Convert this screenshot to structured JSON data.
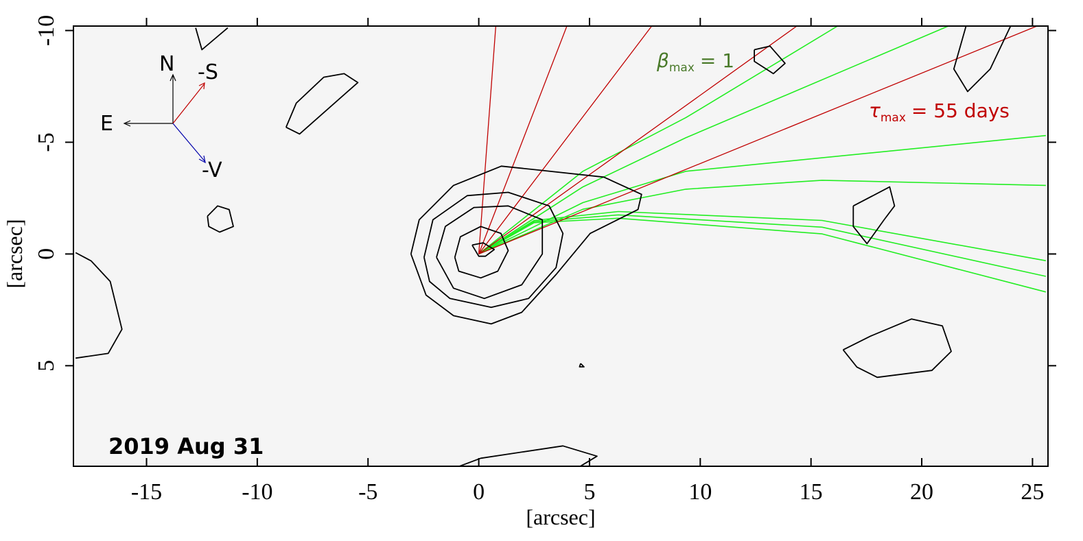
{
  "chart_data": {
    "type": "contour",
    "date_label": "2019 Aug 31",
    "xlabel": "[arcsec]",
    "ylabel": "[arcsec]",
    "xlim": [
      -18.3,
      25.7
    ],
    "ylim": [
      9.5,
      -10.2
    ],
    "xticks": [
      -15,
      -10,
      -5,
      0,
      5,
      10,
      15,
      20,
      25
    ],
    "yticks": [
      -10,
      -5,
      0,
      5
    ],
    "compass": {
      "north": "N",
      "east": "E",
      "sun": "-S",
      "velocity": "-V"
    },
    "syndyne_label": {
      "symbol": "β",
      "sub": "max",
      "text": "= 1",
      "color": "#4a7a2a"
    },
    "synchrone_label": {
      "symbol": "τ",
      "sub": "max",
      "text": "= 55 days",
      "color": "#c00000"
    },
    "contour_color": "#000000",
    "contours": [
      {
        "x": [
          -0.3,
          0.2,
          0.7,
          0.3,
          0.0,
          -0.3
        ],
        "y": [
          -0.4,
          -0.5,
          -0.2,
          0.1,
          0.1,
          -0.4
        ]
      },
      {
        "x": [
          -1.08,
          -0.83,
          0.09,
          1.0,
          1.33,
          0.86,
          0.09,
          -0.9,
          -1.08
        ],
        "y": [
          0.15,
          -0.77,
          -1.23,
          -0.92,
          -0.15,
          0.77,
          1.07,
          0.77,
          0.15
        ]
      },
      {
        "x": [
          -1.91,
          -1.51,
          -0.22,
          1.33,
          2.87,
          2.87,
          1.94,
          0.25,
          -1.14,
          -1.91
        ],
        "y": [
          0.15,
          -1.23,
          -2.08,
          -2.15,
          -1.53,
          0,
          1.38,
          1.99,
          1.53,
          0.15
        ]
      },
      {
        "x": [
          -2.47,
          -2.07,
          -0.52,
          1.33,
          3.18,
          3.8,
          3.49,
          2.25,
          0.56,
          -1.3,
          -2.22,
          -2.47
        ],
        "y": [
          0.15,
          -1.53,
          -2.61,
          -2.76,
          -2.15,
          -0.92,
          0.61,
          1.99,
          2.39,
          1.99,
          1.23,
          0.15
        ]
      },
      {
        "x": [
          -3.06,
          -2.69,
          -1.14,
          1.02,
          2.56,
          5.65,
          7.35,
          7.19,
          5.03,
          3.49,
          1.94,
          0.56,
          -1.14,
          -2.38,
          -3.06
        ],
        "y": [
          0,
          -1.53,
          -3.07,
          -3.93,
          -3.77,
          -3.44,
          -2.67,
          -1.99,
          -0.92,
          0.92,
          2.61,
          3.13,
          2.76,
          1.84,
          0
        ]
      },
      {
        "x": [
          -12.78,
          -12.5,
          -11.33
        ],
        "y": [
          -10.12,
          -9.14,
          -10.12
        ]
      },
      {
        "x": [
          -8.7,
          -8.09,
          -5.46,
          -6.08,
          -7.0,
          -8.24,
          -8.7
        ],
        "y": [
          -5.67,
          -5.37,
          -7.67,
          -8.07,
          -7.91,
          -6.75,
          -5.67
        ]
      },
      {
        "x": [
          -12.25,
          -11.79,
          -11.27,
          -11.08,
          -11.7,
          -12.19,
          -12.25
        ],
        "y": [
          -1.69,
          -2.15,
          -1.99,
          -1.23,
          -0.98,
          -1.23,
          -1.69
        ]
      },
      {
        "x": [
          -18.2,
          -17.5,
          -16.64,
          -16.11,
          -16.73,
          -18.2
        ],
        "y": [
          -0.06,
          0.31,
          1.23,
          3.37,
          4.45,
          4.66
        ]
      },
      {
        "x": [
          -0.9,
          0.09,
          3.8,
          5.34,
          4.57
        ],
        "y": [
          9.51,
          9.14,
          8.59,
          9.05,
          9.51
        ]
      },
      {
        "x": [
          4.6,
          4.75,
          4.55,
          4.6
        ],
        "y": [
          4.9,
          5.05,
          5.05,
          4.9
        ]
      },
      {
        "x": [
          12.44,
          13.15,
          13.83,
          13.3,
          12.44,
          12.44
        ],
        "y": [
          -9.14,
          -9.3,
          -8.53,
          -8.07,
          -8.62,
          -9.14
        ]
      },
      {
        "x": [
          22.0,
          21.45,
          22.07,
          23.09,
          24.01
        ],
        "y": [
          -10.2,
          -8.28,
          -7.27,
          -8.28,
          -10.2
        ]
      },
      {
        "x": [
          16.91,
          18.55,
          18.77,
          18.3,
          17.53,
          16.91,
          16.91
        ],
        "y": [
          -2.15,
          -3.0,
          -2.15,
          -1.53,
          -0.46,
          -1.23,
          -2.15
        ]
      },
      {
        "x": [
          16.45,
          17.68,
          19.54,
          20.93,
          21.33,
          20.46,
          17.99,
          17.07,
          16.45
        ],
        "y": [
          4.29,
          3.68,
          2.91,
          3.22,
          4.36,
          5.21,
          5.52,
          5.06,
          4.29
        ]
      }
    ],
    "synchrones": {
      "color": "#c00000",
      "lines": [
        {
          "x": [
            0,
            0.77
          ],
          "y": [
            0,
            -10.2
          ]
        },
        {
          "x": [
            0,
            3.98
          ],
          "y": [
            0,
            -10.2
          ]
        },
        {
          "x": [
            0,
            7.81
          ],
          "y": [
            0,
            -10.2
          ]
        },
        {
          "x": [
            0,
            14.36
          ],
          "y": [
            0,
            -10.2
          ]
        },
        {
          "x": [
            0,
            25.2
          ],
          "y": [
            0,
            -10.2
          ]
        }
      ]
    },
    "syndynes": {
      "color": "#22ee22",
      "lines": [
        {
          "x": [
            0,
            4.7,
            9.35,
            16.2
          ],
          "y": [
            0,
            -3.7,
            -6.1,
            -10.2
          ]
        },
        {
          "x": [
            0,
            4.7,
            9.35,
            21.2
          ],
          "y": [
            0,
            -3.0,
            -5.2,
            -10.2
          ]
        },
        {
          "x": [
            0,
            4.7,
            9.35,
            25.6
          ],
          "y": [
            0,
            -2.3,
            -3.7,
            -5.3
          ]
        },
        {
          "x": [
            0,
            4.7,
            9.35,
            15.5,
            25.6
          ],
          "y": [
            0,
            -2.0,
            -2.9,
            -3.3,
            -3.07
          ]
        },
        {
          "x": [
            0,
            2.5,
            6.3,
            15.5,
            25.6
          ],
          "y": [
            0,
            -1.5,
            -1.9,
            -1.5,
            0.3
          ]
        },
        {
          "x": [
            0,
            2.5,
            6.3,
            15.5,
            25.6
          ],
          "y": [
            0,
            -1.45,
            -1.75,
            -1.2,
            1.0
          ]
        },
        {
          "x": [
            0,
            2.5,
            6.3,
            15.5,
            25.6
          ],
          "y": [
            0,
            -1.4,
            -1.6,
            -0.9,
            1.7
          ]
        }
      ]
    }
  }
}
